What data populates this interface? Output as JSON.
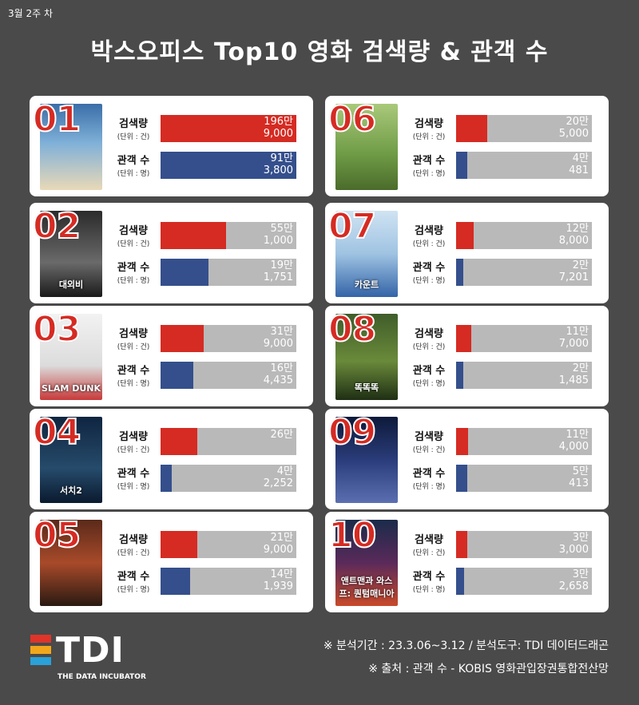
{
  "week_label": "3월 2주 차",
  "title": "박스오피스 Top10 영화 검색량 & 관객 수",
  "labels": {
    "search": "검색량",
    "search_unit": "(단위 : 건)",
    "audience": "관객 수",
    "audience_unit": "(단위 : 명)"
  },
  "colors": {
    "search": "#d52b23",
    "audience": "#344f8c",
    "track": "#b9b9b9",
    "background": "#4a4a4a"
  },
  "movies": [
    {
      "rank": "01",
      "poster_text": "",
      "search_display": [
        "196만",
        "9,000"
      ],
      "audience_display": [
        "91만",
        "3,800"
      ],
      "search_pct": 100,
      "audience_pct": 100
    },
    {
      "rank": "02",
      "poster_text": "대외비",
      "search_display": [
        "55만",
        "1,000"
      ],
      "audience_display": [
        "19만",
        "1,751"
      ],
      "search_pct": 48,
      "audience_pct": 35
    },
    {
      "rank": "03",
      "poster_text": "SLAM DUNK",
      "search_display": [
        "31만",
        "9,000"
      ],
      "audience_display": [
        "16만",
        "4,435"
      ],
      "search_pct": 32,
      "audience_pct": 24
    },
    {
      "rank": "04",
      "poster_text": "서치2",
      "search_display": [
        "26만",
        ""
      ],
      "audience_display": [
        "4만",
        "2,252"
      ],
      "search_pct": 27,
      "audience_pct": 8
    },
    {
      "rank": "05",
      "poster_text": "",
      "search_display": [
        "21만",
        "9,000"
      ],
      "audience_display": [
        "14만",
        "1,939"
      ],
      "search_pct": 27,
      "audience_pct": 22
    },
    {
      "rank": "06",
      "poster_text": "",
      "search_display": [
        "20만",
        "5,000"
      ],
      "audience_display": [
        "4만",
        "481"
      ],
      "search_pct": 23,
      "audience_pct": 8
    },
    {
      "rank": "07",
      "poster_text": "카운트",
      "search_display": [
        "12만",
        "8,000"
      ],
      "audience_display": [
        "2만",
        "7,201"
      ],
      "search_pct": 13,
      "audience_pct": 5
    },
    {
      "rank": "08",
      "poster_text": "똑똑똑",
      "search_display": [
        "11만",
        "7,000"
      ],
      "audience_display": [
        "2만",
        "1,485"
      ],
      "search_pct": 11,
      "audience_pct": 5
    },
    {
      "rank": "09",
      "poster_text": "",
      "search_display": [
        "11만",
        "4,000"
      ],
      "audience_display": [
        "5만",
        "413"
      ],
      "search_pct": 9,
      "audience_pct": 8
    },
    {
      "rank": "10",
      "poster_text": "앤트맨과 와스프: 퀀텀매니아",
      "search_display": [
        "3만",
        "3,000"
      ],
      "audience_display": [
        "3만",
        "2,658"
      ],
      "search_pct": 8,
      "audience_pct": 6
    }
  ],
  "posters": [
    {
      "bg": "linear-gradient(180deg,#3a6ea8 0%,#7fb0d8 45%,#e8d9b8 100%)"
    },
    {
      "bg": "linear-gradient(180deg,#2b2b2b 0%,#6a6a6a 60%,#1a1a1a 100%)"
    },
    {
      "bg": "linear-gradient(180deg,#f2f2f2 0%,#dcdcdc 60%,#c83a3a 100%)"
    },
    {
      "bg": "linear-gradient(180deg,#0f2540 0%,#264b6b 60%,#0a1a2e 100%)"
    },
    {
      "bg": "linear-gradient(180deg,#5a2a1a 0%,#a84a2a 50%,#2a1a12 100%)"
    },
    {
      "bg": "linear-gradient(180deg,#a9c97a 0%,#6d9a45 60%,#4b6b2b 100%)"
    },
    {
      "bg": "linear-gradient(180deg,#cfe3f2 0%,#9fc3e2 50%,#3464a8 100%)"
    },
    {
      "bg": "linear-gradient(180deg,#3f5d2a 0%,#6a8a3a 55%,#1f2f14 100%)"
    },
    {
      "bg": "linear-gradient(180deg,#0d1a3a 0%,#2a3c7a 50%,#5b6fb0 100%)"
    },
    {
      "bg": "linear-gradient(180deg,#1a2b4a 0%,#5a2a5a 50%,#c84a2a 100%)"
    }
  ],
  "logo": {
    "text": "TDI",
    "subtitle": "THE DATA INCUBATOR",
    "stripe_colors": [
      "#e0342a",
      "#f2a71b",
      "#2aa1d8"
    ]
  },
  "notes": [
    "※ 분석기간 : 23.3.06~3.12 / 분석도구: TDI 데이터드래곤",
    "※ 출처 : 관객 수 -  KOBIS 영화관입장권통합전산망"
  ]
}
